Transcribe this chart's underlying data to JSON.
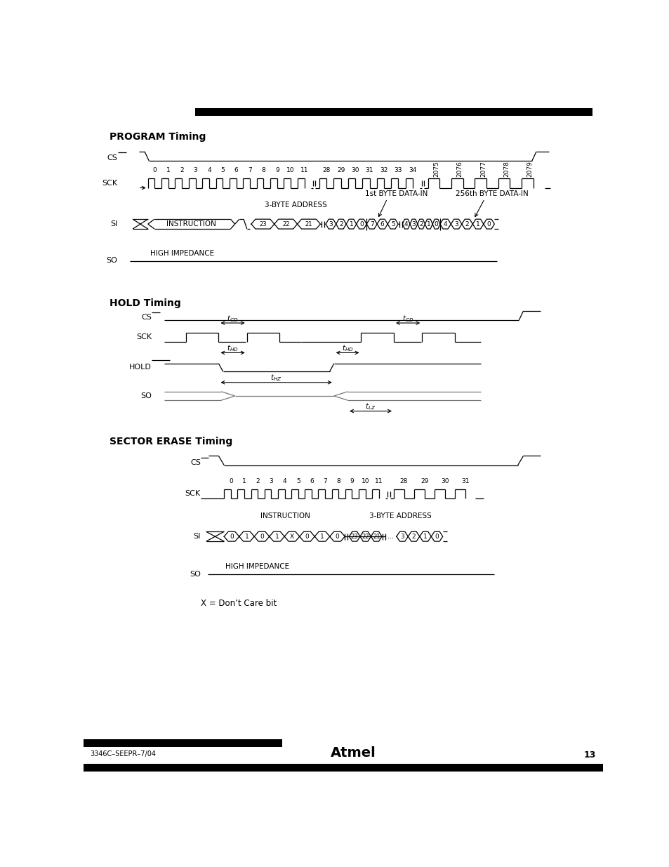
{
  "bg_color": "#ffffff",
  "line_color": "#000000",
  "gray_line_color": "#777777",
  "footer_text": "3346C–SEEPR–7/04",
  "page_number": "13",
  "dont_care_text": "X = Don’t Care bit"
}
